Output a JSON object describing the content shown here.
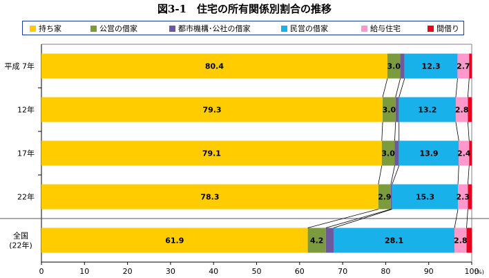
{
  "chart_data": {
    "type": "bar",
    "orientation": "horizontal",
    "stacked": true,
    "title": "図3-1　住宅の所有関係別割合の推移",
    "xlim": [
      0,
      100
    ],
    "x_ticks": [
      "0",
      "10",
      "20",
      "30",
      "40",
      "50",
      "60",
      "70",
      "80",
      "90",
      "100"
    ],
    "x_unit": "(%)",
    "legend_position": "top",
    "categories": [
      "平成 7年",
      "12年",
      "17年",
      "22年",
      "全国(22年)"
    ],
    "series": [
      {
        "name": "持ち家",
        "color": "#FFCC00",
        "values": [
          80.4,
          79.3,
          79.1,
          78.3,
          61.9
        ],
        "labels": [
          "80.4",
          "79.3",
          "79.1",
          "78.3",
          "61.9"
        ]
      },
      {
        "name": "公営の借家",
        "color": "#7C9A3E",
        "values": [
          3.0,
          3.0,
          3.0,
          2.9,
          4.2
        ],
        "labels": [
          "3.0",
          "3.0",
          "3.0",
          "2.9",
          "4.2"
        ]
      },
      {
        "name": "都市機構･公社の借家",
        "color": "#6B5A9C",
        "values": [
          1.0,
          0.8,
          1.0,
          0.3,
          1.8
        ],
        "labels": [
          "",
          "",
          "",
          "",
          ""
        ]
      },
      {
        "name": "民営の借家",
        "color": "#19B1EA",
        "values": [
          12.3,
          13.2,
          13.9,
          15.3,
          28.1
        ],
        "labels": [
          "12.3",
          "13.2",
          "13.9",
          "15.3",
          "28.1"
        ]
      },
      {
        "name": "給与住宅",
        "color": "#FF99CC",
        "values": [
          2.7,
          2.8,
          2.4,
          2.3,
          2.8
        ],
        "labels": [
          "2.7",
          "2.8",
          "2.4",
          "2.3",
          "2.8"
        ]
      },
      {
        "name": "間借り",
        "color": "#E8001C",
        "values": [
          0.6,
          0.9,
          0.6,
          0.9,
          1.2
        ],
        "labels": [
          "",
          "",
          "",
          "",
          ""
        ]
      }
    ]
  }
}
